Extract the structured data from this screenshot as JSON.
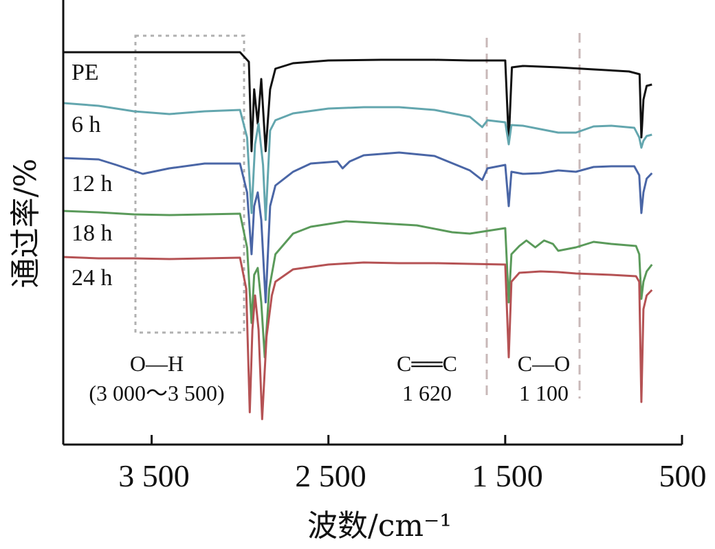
{
  "chart_data": {
    "type": "line",
    "xlabel": "波数/cm⁻¹",
    "ylabel": "通过率/%",
    "xlim": [
      4000,
      500
    ],
    "x_ticks": [
      3500,
      2500,
      1500,
      500
    ],
    "x_tick_labels": [
      "3 500",
      "2 500",
      "1 500",
      "500"
    ],
    "series": [
      {
        "name": "PE",
        "color": "#111111",
        "points": [
          [
            4000,
            76
          ],
          [
            3600,
            76
          ],
          [
            3300,
            76
          ],
          [
            3000,
            76
          ],
          [
            2950,
            90
          ],
          [
            2935,
            220
          ],
          [
            2920,
            130
          ],
          [
            2900,
            180
          ],
          [
            2880,
            115
          ],
          [
            2855,
            220
          ],
          [
            2830,
            130
          ],
          [
            2800,
            100
          ],
          [
            2700,
            92
          ],
          [
            2500,
            88
          ],
          [
            2200,
            87
          ],
          [
            1900,
            87
          ],
          [
            1700,
            88
          ],
          [
            1500,
            88
          ],
          [
            1480,
            205
          ],
          [
            1462,
            98
          ],
          [
            1400,
            96
          ],
          [
            1200,
            98
          ],
          [
            1000,
            101
          ],
          [
            800,
            104
          ],
          [
            740,
            108
          ],
          [
            730,
            200
          ],
          [
            725,
            180
          ],
          [
            718,
            145
          ],
          [
            700,
            125
          ],
          [
            670,
            123
          ]
        ]
      },
      {
        "name": "6 h",
        "color": "#63a6ae",
        "points": [
          [
            4000,
            150
          ],
          [
            3800,
            154
          ],
          [
            3600,
            162
          ],
          [
            3400,
            166
          ],
          [
            3200,
            162
          ],
          [
            3000,
            160
          ],
          [
            2960,
            200
          ],
          [
            2935,
            310
          ],
          [
            2915,
            210
          ],
          [
            2895,
            180
          ],
          [
            2870,
            240
          ],
          [
            2855,
            320
          ],
          [
            2830,
            190
          ],
          [
            2800,
            175
          ],
          [
            2700,
            165
          ],
          [
            2500,
            158
          ],
          [
            2300,
            156
          ],
          [
            2100,
            156
          ],
          [
            1900,
            160
          ],
          [
            1700,
            170
          ],
          [
            1630,
            185
          ],
          [
            1600,
            175
          ],
          [
            1500,
            178
          ],
          [
            1480,
            210
          ],
          [
            1465,
            182
          ],
          [
            1400,
            183
          ],
          [
            1300,
            188
          ],
          [
            1200,
            193
          ],
          [
            1100,
            193
          ],
          [
            1000,
            184
          ],
          [
            900,
            183
          ],
          [
            770,
            186
          ],
          [
            742,
            200
          ],
          [
            730,
            215
          ],
          [
            718,
            205
          ],
          [
            700,
            198
          ],
          [
            670,
            196
          ]
        ]
      },
      {
        "name": "12 h",
        "color": "#4a66a6",
        "points": [
          [
            4000,
            230
          ],
          [
            3800,
            232
          ],
          [
            3700,
            240
          ],
          [
            3550,
            253
          ],
          [
            3400,
            245
          ],
          [
            3200,
            238
          ],
          [
            3000,
            238
          ],
          [
            2960,
            280
          ],
          [
            2935,
            370
          ],
          [
            2920,
            300
          ],
          [
            2900,
            280
          ],
          [
            2880,
            320
          ],
          [
            2855,
            440
          ],
          [
            2830,
            300
          ],
          [
            2800,
            270
          ],
          [
            2700,
            250
          ],
          [
            2600,
            238
          ],
          [
            2450,
            235
          ],
          [
            2420,
            245
          ],
          [
            2380,
            235
          ],
          [
            2300,
            226
          ],
          [
            2100,
            222
          ],
          [
            1900,
            227
          ],
          [
            1700,
            248
          ],
          [
            1630,
            262
          ],
          [
            1600,
            245
          ],
          [
            1500,
            240
          ],
          [
            1480,
            300
          ],
          [
            1465,
            250
          ],
          [
            1400,
            253
          ],
          [
            1300,
            252
          ],
          [
            1200,
            248
          ],
          [
            1100,
            250
          ],
          [
            1000,
            243
          ],
          [
            900,
            242
          ],
          [
            770,
            242
          ],
          [
            742,
            255
          ],
          [
            730,
            310
          ],
          [
            718,
            280
          ],
          [
            700,
            260
          ],
          [
            670,
            252
          ]
        ]
      },
      {
        "name": "18 h",
        "color": "#5a9a5a",
        "points": [
          [
            4000,
            307
          ],
          [
            3800,
            309
          ],
          [
            3600,
            312
          ],
          [
            3400,
            313
          ],
          [
            3200,
            312
          ],
          [
            3000,
            311
          ],
          [
            2960,
            360
          ],
          [
            2935,
            470
          ],
          [
            2920,
            400
          ],
          [
            2900,
            390
          ],
          [
            2880,
            440
          ],
          [
            2860,
            520
          ],
          [
            2835,
            420
          ],
          [
            2800,
            370
          ],
          [
            2700,
            340
          ],
          [
            2600,
            330
          ],
          [
            2400,
            322
          ],
          [
            2200,
            325
          ],
          [
            2000,
            328
          ],
          [
            1800,
            338
          ],
          [
            1700,
            340
          ],
          [
            1600,
            336
          ],
          [
            1500,
            332
          ],
          [
            1480,
            440
          ],
          [
            1465,
            370
          ],
          [
            1420,
            358
          ],
          [
            1380,
            350
          ],
          [
            1330,
            360
          ],
          [
            1280,
            350
          ],
          [
            1230,
            355
          ],
          [
            1200,
            365
          ],
          [
            1100,
            360
          ],
          [
            1000,
            352
          ],
          [
            900,
            355
          ],
          [
            760,
            358
          ],
          [
            742,
            370
          ],
          [
            730,
            435
          ],
          [
            718,
            410
          ],
          [
            700,
            395
          ],
          [
            670,
            385
          ]
        ]
      },
      {
        "name": "24 h",
        "color": "#b55254",
        "points": [
          [
            4000,
            374
          ],
          [
            3800,
            376
          ],
          [
            3600,
            376
          ],
          [
            3400,
            377
          ],
          [
            3200,
            376
          ],
          [
            3000,
            375
          ],
          [
            2965,
            420
          ],
          [
            2945,
            600
          ],
          [
            2930,
            480
          ],
          [
            2915,
            430
          ],
          [
            2895,
            480
          ],
          [
            2875,
            610
          ],
          [
            2850,
            490
          ],
          [
            2820,
            430
          ],
          [
            2800,
            410
          ],
          [
            2700,
            392
          ],
          [
            2500,
            385
          ],
          [
            2300,
            382
          ],
          [
            2100,
            383
          ],
          [
            1900,
            383
          ],
          [
            1700,
            384
          ],
          [
            1500,
            385
          ],
          [
            1480,
            520
          ],
          [
            1465,
            410
          ],
          [
            1420,
            397
          ],
          [
            1300,
            395
          ],
          [
            1200,
            396
          ],
          [
            1100,
            398
          ],
          [
            1000,
            399
          ],
          [
            900,
            400
          ],
          [
            760,
            402
          ],
          [
            742,
            410
          ],
          [
            730,
            585
          ],
          [
            718,
            450
          ],
          [
            700,
            430
          ],
          [
            670,
            422
          ]
        ]
      }
    ],
    "reference_lines": [
      {
        "x": 1620,
        "color": "#c8b8b8"
      },
      {
        "x": 1100,
        "color": "#c8b8b8"
      }
    ],
    "highlight_box": {
      "x_from": 3600,
      "x_to": 3000,
      "color": "#b0b0b0"
    },
    "annotations": [
      {
        "lines": [
          "O—H",
          "(3 000～3 500)"
        ]
      },
      {
        "lines": [
          "C══C",
          "1 620"
        ]
      },
      {
        "lines": [
          "C—O",
          "1 100"
        ]
      }
    ]
  }
}
